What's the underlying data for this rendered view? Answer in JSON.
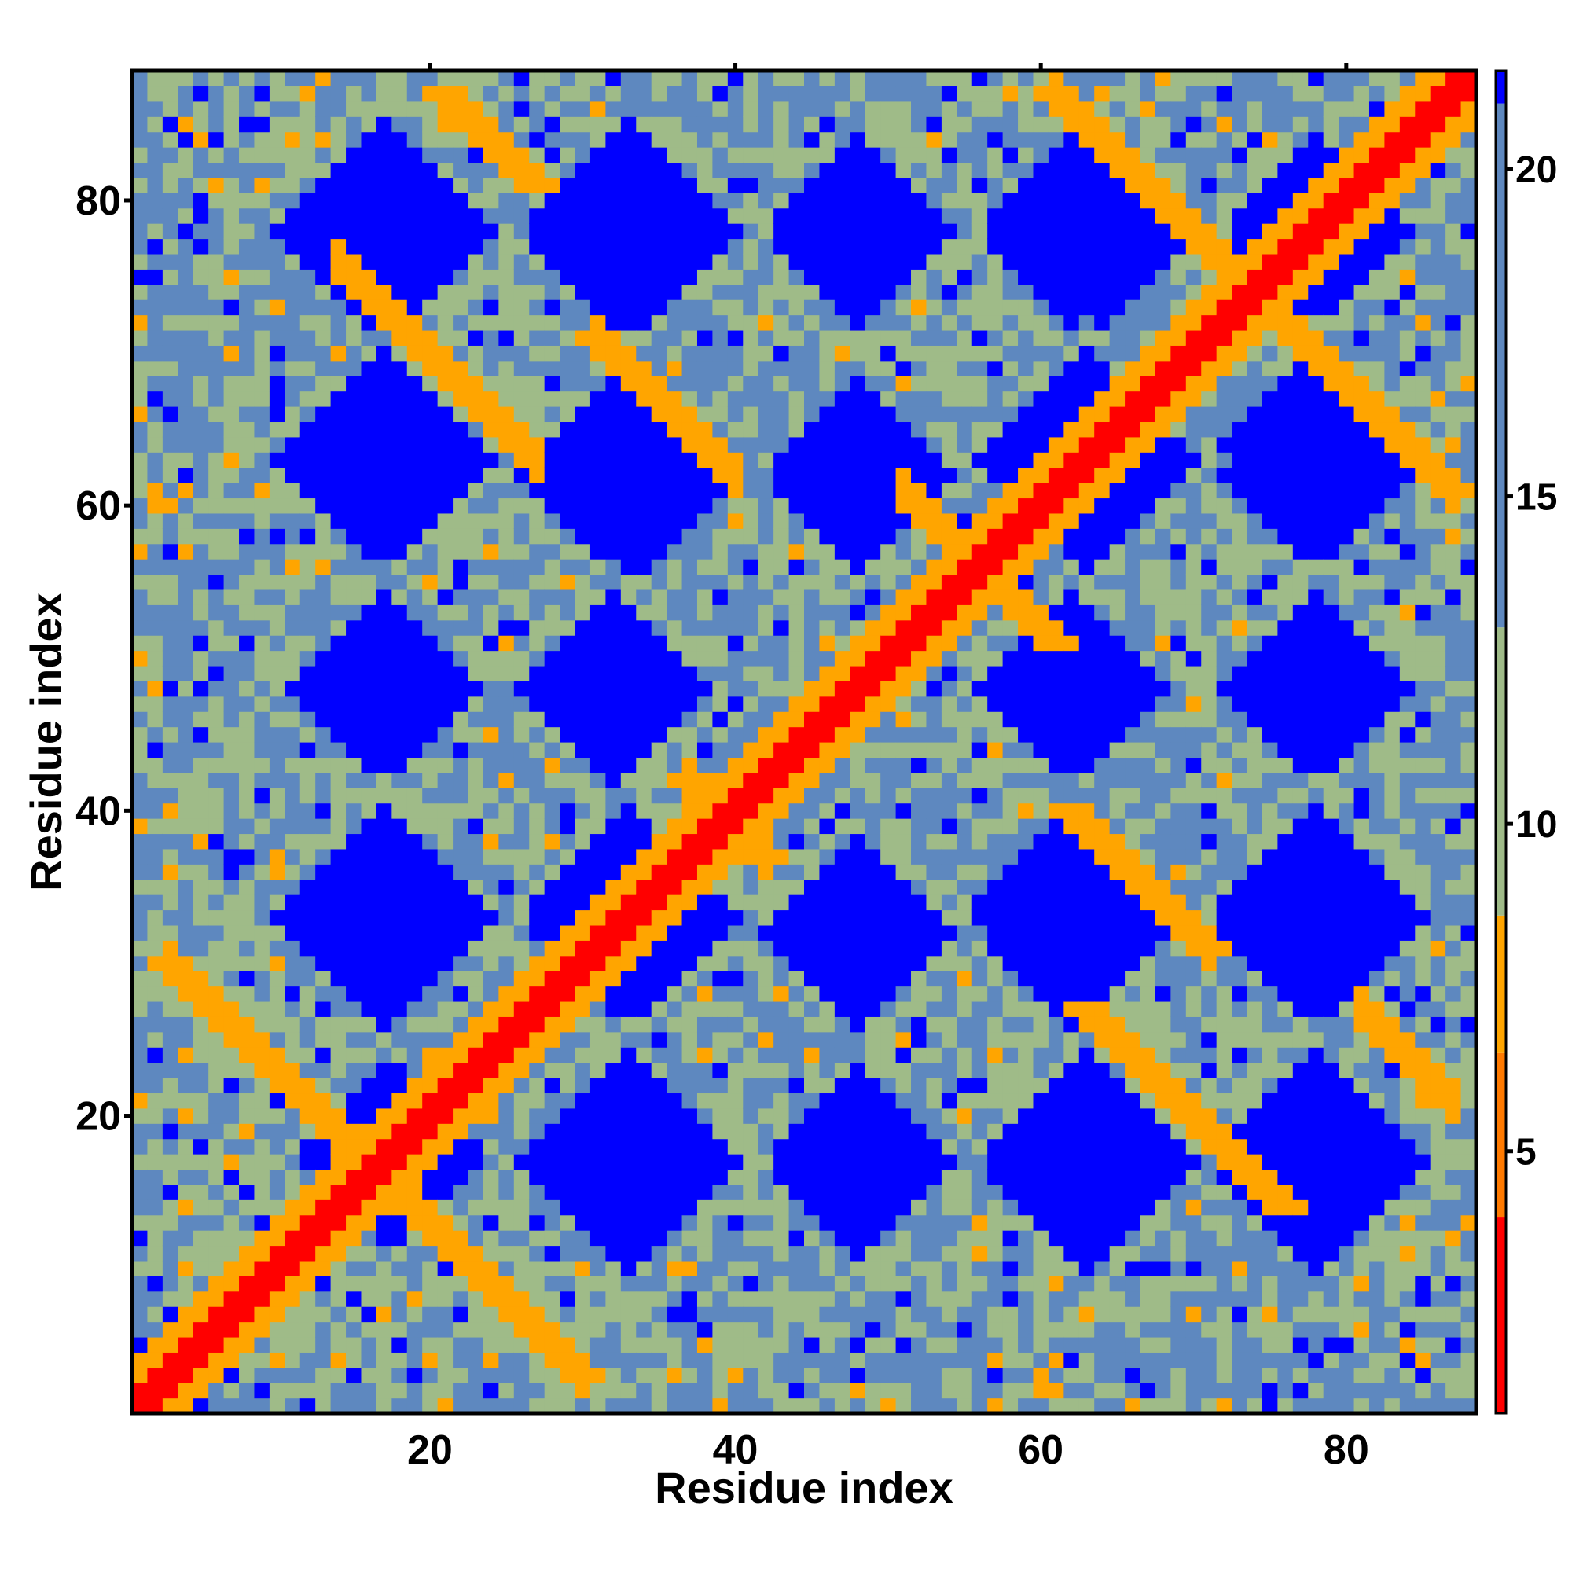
{
  "chart_data": {
    "type": "heatmap",
    "title": "",
    "xlabel": "Residue index",
    "ylabel": "Residue index",
    "xlim": [
      1,
      88
    ],
    "ylim": [
      1,
      88
    ],
    "x_ticks": [
      20,
      40,
      60,
      80
    ],
    "y_ticks": [
      20,
      40,
      60,
      80
    ],
    "x_tick_labels": [
      "20",
      "40",
      "60",
      "80"
    ],
    "y_tick_labels": [
      "20",
      "40",
      "60",
      "80"
    ],
    "n_residues": 88,
    "matrix_description": "symmetric residue-residue distance map; distances clipped at 21",
    "colorbar": {
      "range": [
        1,
        21.5
      ],
      "ticks": [
        5,
        10,
        15,
        20
      ],
      "tick_labels": [
        "5",
        "10",
        "15",
        "20"
      ],
      "colors": [
        {
          "from": 1,
          "to": 4,
          "color": "#ff0000"
        },
        {
          "from": 4,
          "to": 6.5,
          "color": "#ff7a00"
        },
        {
          "from": 6.5,
          "to": 8.6,
          "color": "#ffa500"
        },
        {
          "from": 8.6,
          "to": 13,
          "color": "#9fbb88"
        },
        {
          "from": 13,
          "to": 21,
          "color": "#5e88bf"
        },
        {
          "from": 21,
          "to": 21.5,
          "color": "#0000ff"
        }
      ]
    },
    "bands": [
      {
        "kind": "diagonal",
        "description": "main diagonal contacts i=j",
        "value": 3.2
      },
      {
        "kind": "anti-parallel",
        "i_plus_j": 33,
        "range": [
          3,
          30
        ],
        "value": 6.5
      },
      {
        "kind": "anti-parallel",
        "i_plus_j": 79,
        "range": [
          37,
          42
        ],
        "value": 6.5
      },
      {
        "kind": "anti-parallel",
        "i_plus_j": 90,
        "range": [
          14,
          27
        ],
        "value": 6.5
      },
      {
        "kind": "anti-parallel",
        "i_plus_j": 112,
        "range": [
          51,
          58
        ],
        "value": 6.5
      },
      {
        "kind": "anti-parallel",
        "i_plus_j": 102,
        "range": [
          31,
          40
        ],
        "value": 6.5
      },
      {
        "kind": "anti-parallel",
        "i_plus_j": 102,
        "range": [
          64,
          71
        ],
        "value": 6.5
      },
      {
        "kind": "anti-parallel",
        "i_plus_j": 148,
        "range": [
          61,
          87
        ],
        "value": 6.5
      },
      {
        "kind": "anti-parallel",
        "i_plus_j": 108,
        "range": [
          81,
          87
        ],
        "value": 6.5
      }
    ],
    "holes": [
      {
        "center": [
          17.5,
          17.5
        ],
        "radius": 6
      },
      {
        "center": [
          33,
          17
        ],
        "radius": 7
      },
      {
        "center": [
          48,
          17
        ],
        "radius": 6
      },
      {
        "center": [
          62,
          17
        ],
        "radius": 7
      },
      {
        "center": [
          78,
          17
        ],
        "radius": 6
      },
      {
        "center": [
          17,
          33
        ],
        "radius": 7
      },
      {
        "center": [
          33,
          33
        ],
        "radius": 7
      },
      {
        "center": [
          48,
          33
        ],
        "radius": 7
      },
      {
        "center": [
          63,
          33
        ],
        "radius": 7
      },
      {
        "center": [
          78,
          33
        ],
        "radius": 7
      },
      {
        "center": [
          17,
          48
        ],
        "radius": 6
      },
      {
        "center": [
          32,
          48
        ],
        "radius": 6
      },
      {
        "center": [
          63,
          48
        ],
        "radius": 6
      },
      {
        "center": [
          78,
          48
        ],
        "radius": 6
      },
      {
        "center": [
          17,
          63
        ],
        "radius": 7
      },
      {
        "center": [
          33,
          62
        ],
        "radius": 7
      },
      {
        "center": [
          48,
          62
        ],
        "radius": 6
      },
      {
        "center": [
          63,
          63
        ],
        "radius": 7
      },
      {
        "center": [
          78,
          63
        ],
        "radius": 7
      },
      {
        "center": [
          17,
          78
        ],
        "radius": 7
      },
      {
        "center": [
          33,
          78
        ],
        "radius": 7
      },
      {
        "center": [
          48,
          78
        ],
        "radius": 6
      },
      {
        "center": [
          63,
          78
        ],
        "radius": 7
      },
      {
        "center": [
          78,
          78
        ],
        "radius": 6
      }
    ],
    "grid": false,
    "legend": "colorbar-right"
  }
}
